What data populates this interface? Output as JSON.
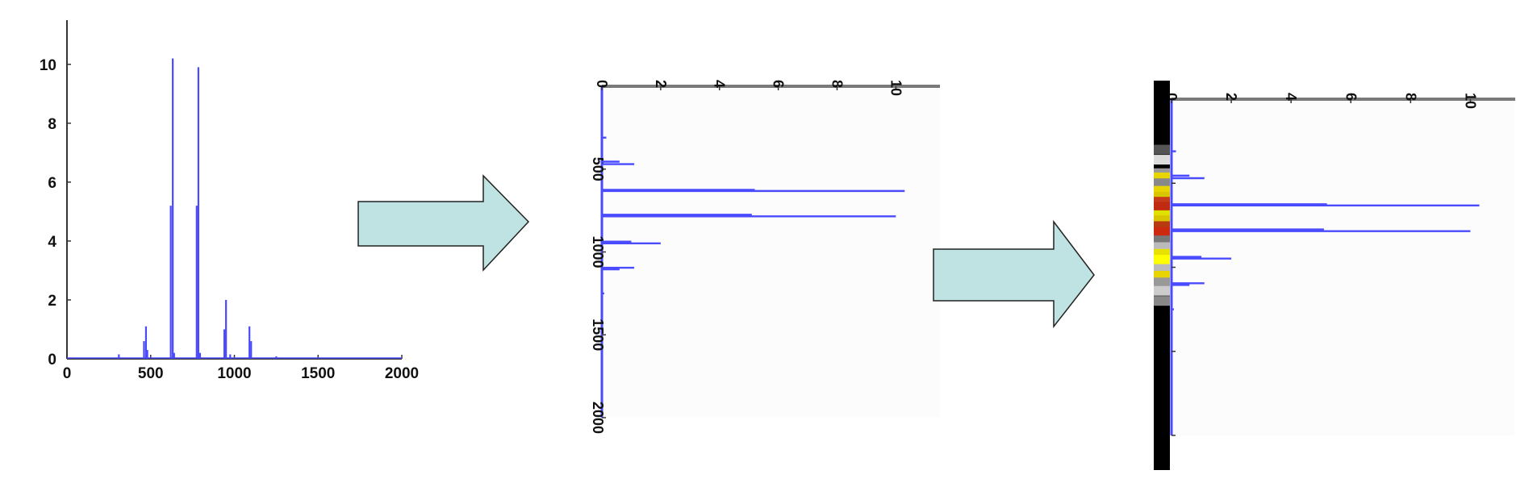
{
  "colors": {
    "series": "#4a4aff",
    "axis": "#333333",
    "right_axis": "#7a7a7a",
    "arrow_fill": "#bfe3e3",
    "arrow_stroke": "#222222"
  },
  "chart_data": [
    {
      "type": "line",
      "orientation": "vertical",
      "xlim": [
        0,
        2000
      ],
      "ylim": [
        0,
        11.5
      ],
      "x_ticks": [
        "0",
        "500",
        "1000",
        "1500",
        "2000"
      ],
      "y_ticks": [
        "0",
        "2",
        "4",
        "6",
        "8",
        "10"
      ],
      "series": [
        {
          "peaks": [
            {
              "x": 310,
              "y": 0.15
            },
            {
              "x": 460,
              "y": 0.6
            },
            {
              "x": 472,
              "y": 1.1
            },
            {
              "x": 480,
              "y": 0.3
            },
            {
              "x": 620,
              "y": 5.2
            },
            {
              "x": 632,
              "y": 10.2
            },
            {
              "x": 640,
              "y": 0.2
            },
            {
              "x": 775,
              "y": 5.2
            },
            {
              "x": 785,
              "y": 9.9
            },
            {
              "x": 795,
              "y": 0.2
            },
            {
              "x": 940,
              "y": 1.0
            },
            {
              "x": 950,
              "y": 2.0
            },
            {
              "x": 975,
              "y": 0.15
            },
            {
              "x": 1090,
              "y": 1.1
            },
            {
              "x": 1100,
              "y": 0.6
            },
            {
              "x": 1250,
              "y": 0.08
            }
          ]
        }
      ]
    },
    {
      "type": "bar",
      "orientation": "horizontal",
      "xlim": [
        0,
        11.5
      ],
      "ylim": [
        0,
        2000
      ],
      "x_ticks": [
        "0",
        "2",
        "4",
        "6",
        "8",
        "10"
      ],
      "y_ticks": [
        "500",
        "1000",
        "1500",
        "2000"
      ],
      "series": [
        {
          "peaks": [
            {
              "y": 310,
              "x": 0.15
            },
            {
              "y": 455,
              "x": 0.6
            },
            {
              "y": 470,
              "x": 1.1
            },
            {
              "y": 625,
              "x": 5.2
            },
            {
              "y": 632,
              "x": 10.3
            },
            {
              "y": 775,
              "x": 5.1
            },
            {
              "y": 785,
              "x": 10.0
            },
            {
              "y": 938,
              "x": 1.0
            },
            {
              "y": 948,
              "x": 2.0
            },
            {
              "y": 1095,
              "x": 1.1
            },
            {
              "y": 1105,
              "x": 0.6
            },
            {
              "y": 1250,
              "x": 0.08
            }
          ]
        }
      ]
    },
    {
      "type": "bar",
      "orientation": "horizontal",
      "xlim": [
        0,
        11.5
      ],
      "ylim": [
        0,
        2000
      ],
      "x_ticks": [
        "0",
        "2",
        "4",
        "6",
        "8",
        "10"
      ],
      "y_ticks": [],
      "series": [
        {
          "peaks": [
            {
              "y": 310,
              "x": 0.15
            },
            {
              "y": 455,
              "x": 0.6
            },
            {
              "y": 470,
              "x": 1.1
            },
            {
              "y": 625,
              "x": 5.2
            },
            {
              "y": 632,
              "x": 10.3
            },
            {
              "y": 775,
              "x": 5.1
            },
            {
              "y": 785,
              "x": 10.0
            },
            {
              "y": 938,
              "x": 1.0
            },
            {
              "y": 948,
              "x": 2.0
            },
            {
              "y": 1095,
              "x": 1.1
            },
            {
              "y": 1105,
              "x": 0.6
            },
            {
              "y": 1250,
              "x": 0.08
            }
          ]
        }
      ],
      "band_strip": {
        "bands": [
          {
            "y": 300,
            "color": "#555555"
          },
          {
            "y": 360,
            "color": "#dddddd"
          },
          {
            "y": 440,
            "color": "#999999"
          },
          {
            "y": 465,
            "color": "#e8d400"
          },
          {
            "y": 500,
            "color": "#888888"
          },
          {
            "y": 545,
            "color": "#e8d400"
          },
          {
            "y": 580,
            "color": "#d9c400"
          },
          {
            "y": 610,
            "color": "#c43a1a"
          },
          {
            "y": 640,
            "color": "#c02a10"
          },
          {
            "y": 690,
            "color": "#e0e000"
          },
          {
            "y": 720,
            "color": "#d9c400"
          },
          {
            "y": 755,
            "color": "#b83a10"
          },
          {
            "y": 790,
            "color": "#cc2a10"
          },
          {
            "y": 840,
            "color": "#777777"
          },
          {
            "y": 880,
            "color": "#bbbbbb"
          },
          {
            "y": 920,
            "color": "#e8e000"
          },
          {
            "y": 955,
            "color": "#ffff00"
          },
          {
            "y": 1010,
            "color": "#bbbbbb"
          },
          {
            "y": 1050,
            "color": "#e8d400"
          },
          {
            "y": 1090,
            "color": "#999999"
          },
          {
            "y": 1140,
            "color": "#cccccc"
          },
          {
            "y": 1200,
            "color": "#888888"
          }
        ]
      }
    }
  ],
  "arrows": [
    {
      "from": "chart-1",
      "to": "chart-2"
    },
    {
      "from": "chart-2",
      "to": "chart-3"
    }
  ]
}
